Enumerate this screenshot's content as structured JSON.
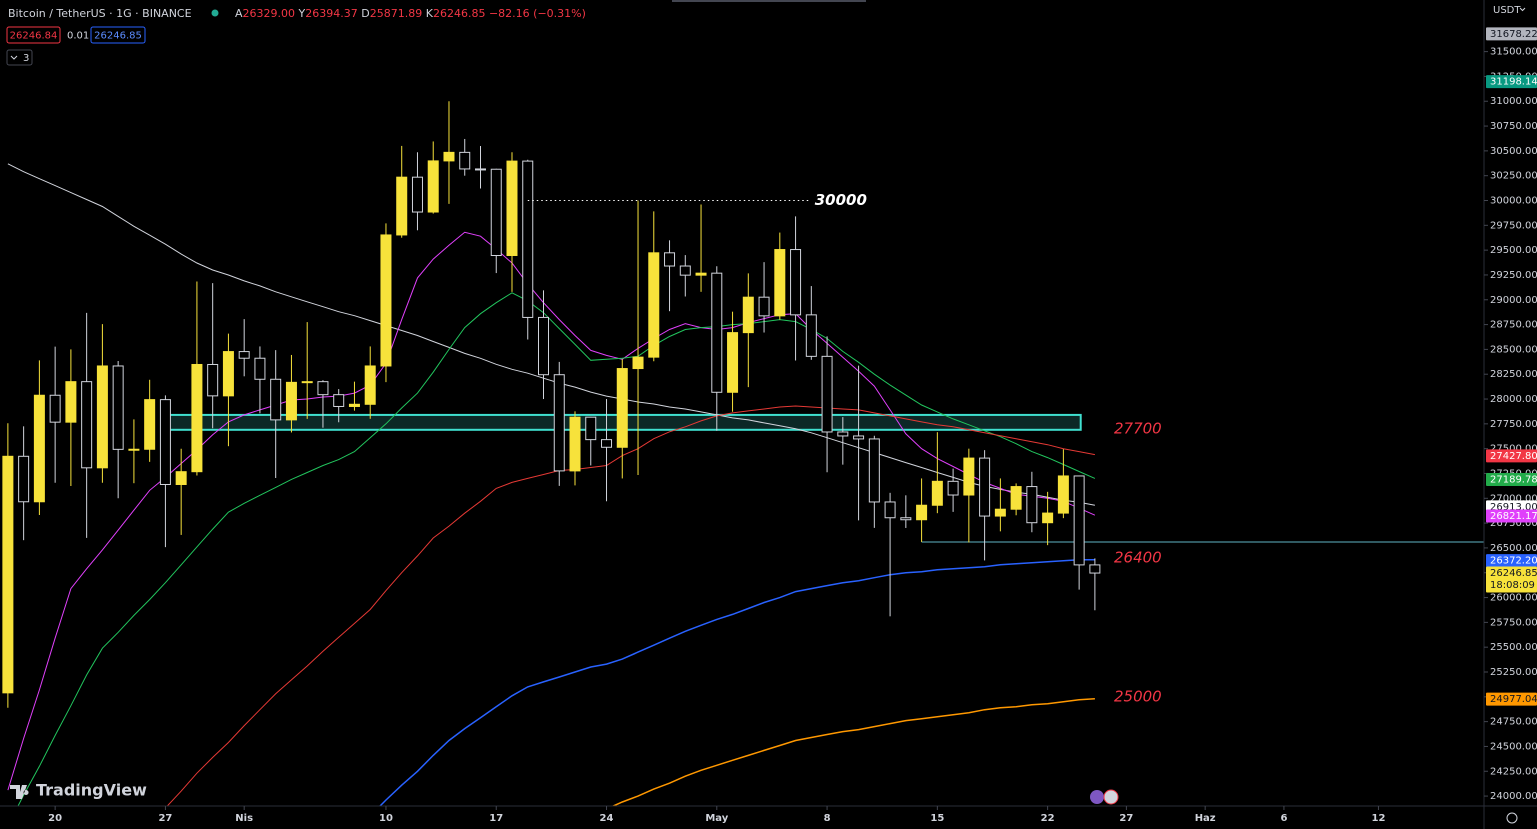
{
  "header": {
    "symbol": "Bitcoin / TetherUS · 1G · BINANCE",
    "ohlc": [
      {
        "key": "A",
        "value": "26329.00"
      },
      {
        "key": "Y",
        "value": "26394.37"
      },
      {
        "key": "D",
        "value": "25871.89"
      },
      {
        "key": "K",
        "value": "26246.85"
      }
    ],
    "change": "−82.16 (−0.31%)",
    "sell": "26246.84",
    "spread": "0.01",
    "buy": "26246.85",
    "indicators": "3",
    "currency": "USDT",
    "brand": "TradingView"
  },
  "chart_data": {
    "type": "candlestick",
    "up_color": "#f7e23b",
    "down_color": "#d1d4dc",
    "open": [
      25040,
      27423,
      26965,
      28038,
      27767,
      28175,
      27307,
      28333,
      27493,
      27494,
      27994,
      27139,
      27268,
      28348,
      28032,
      28478,
      28411,
      28199,
      27790,
      28168,
      28175,
      28044,
      27925,
      27947,
      28333,
      29653,
      30235,
      29884,
      30399,
      30485,
      30318,
      30315,
      29446,
      30397,
      28822,
      28245,
      27276,
      27817,
      27591,
      27514,
      28307,
      28422,
      29473,
      29340,
      29248,
      29268,
      28068,
      28669,
      29026,
      28838,
      29506,
      28848,
      28430,
      27668,
      27628,
      27598,
      26963,
      26804,
      26784,
      26930,
      27171,
      27033,
      27405,
      26821,
      26890,
      27118,
      26754,
      26851,
      27225,
      26329
    ],
    "high": [
      27756,
      27725,
      28390,
      28528,
      28500,
      28868,
      28754,
      28383,
      27795,
      28194,
      28037,
      27499,
      29184,
      29168,
      28659,
      28805,
      28530,
      28493,
      28444,
      28775,
      28190,
      28100,
      28175,
      28530,
      29770,
      30550,
      30486,
      30595,
      31000,
      30620,
      30549,
      30320,
      30486,
      30411,
      29095,
      28374,
      27876,
      27820,
      28000,
      28400,
      30000,
      29890,
      29599,
      29450,
      29960,
      29338,
      28880,
      29266,
      29379,
      29677,
      29840,
      29138,
      28631,
      27818,
      28336,
      27630,
      27055,
      27030,
      27200,
      27666,
      27299,
      27500,
      27485,
      27200,
      27150,
      27267,
      27065,
      27495,
      27225,
      26394.37
    ],
    "low": [
      24890,
      26578,
      26832,
      27156,
      27124,
      26601,
      27156,
      27000,
      27152,
      27367,
      26508,
      26631,
      27230,
      27705,
      27525,
      28229,
      27856,
      27204,
      27663,
      27800,
      27711,
      27766,
      27883,
      27801,
      28170,
      29625,
      29700,
      29868,
      29966,
      30250,
      30121,
      29269,
      29080,
      28600,
      28000,
      27125,
      27130,
      27331,
      26970,
      27200,
      27235,
      28380,
      28885,
      29033,
      29080,
      27680,
      27872,
      28120,
      28670,
      28800,
      28388,
      28395,
      27262,
      27339,
      26777,
      26702,
      25811,
      26701,
      26560,
      26850,
      26863,
      26555,
      26374,
      26667,
      26829,
      26658,
      26528,
      26800,
      26080,
      25871.89
    ],
    "close": [
      27423,
      26965,
      28038,
      27767,
      28175,
      27307,
      28333,
      27493,
      27494,
      27994,
      27139,
      27268,
      28348,
      28032,
      28478,
      28411,
      28199,
      27790,
      28168,
      28175,
      28044,
      27925,
      27947,
      28333,
      29653,
      30235,
      29884,
      30399,
      30485,
      30318,
      30315,
      29446,
      30397,
      28822,
      28245,
      27276,
      27817,
      27591,
      27514,
      28307,
      28422,
      29473,
      29340,
      29248,
      29268,
      28068,
      28669,
      29026,
      28838,
      29506,
      28848,
      28430,
      27668,
      27628,
      27598,
      26963,
      26804,
      26784,
      26930,
      27171,
      27033,
      27405,
      26821,
      26890,
      27118,
      26754,
      26851,
      27225,
      26329,
      26246.85
    ],
    "series": [
      {
        "color": "#d1d4dc",
        "values": [
          30370,
          30290,
          30220,
          30150,
          30080,
          30010,
          29940,
          29840,
          29740,
          29650,
          29560,
          29460,
          29370,
          29300,
          29250,
          29190,
          29140,
          29080,
          29030,
          28980,
          28930,
          28880,
          28840,
          28790,
          28740,
          28690,
          28640,
          28580,
          28520,
          28460,
          28410,
          28350,
          28300,
          28260,
          28210,
          28160,
          28120,
          28070,
          28030,
          28000,
          27970,
          27950,
          27920,
          27900,
          27870,
          27840,
          27810,
          27790,
          27760,
          27730,
          27700,
          27660,
          27610,
          27560,
          27510,
          27460,
          27410,
          27360,
          27310,
          27260,
          27210,
          27160,
          27120,
          27090,
          27060,
          27040,
          27010,
          26980,
          26960,
          26930
        ]
      },
      {
        "color": "#e040fb",
        "values": [
          24060,
          24580,
          25070,
          25590,
          26090,
          26290,
          26480,
          26680,
          26880,
          27080,
          27210,
          27350,
          27490,
          27640,
          27770,
          27840,
          27890,
          27940,
          27990,
          28000,
          28020,
          28030,
          28060,
          28140,
          28360,
          28800,
          29220,
          29410,
          29550,
          29680,
          29640,
          29510,
          29370,
          29160,
          28970,
          28800,
          28640,
          28490,
          28440,
          28400,
          28510,
          28610,
          28700,
          28760,
          28720,
          28700,
          28720,
          28770,
          28810,
          28850,
          28860,
          28700,
          28560,
          28420,
          28280,
          28130,
          27890,
          27650,
          27500,
          27400,
          27320,
          27240,
          27160,
          27100,
          27040,
          27020,
          27000,
          26970,
          26900,
          26830
        ]
      },
      {
        "color": "#22c55e",
        "values": [
          23700,
          24010,
          24300,
          24610,
          24910,
          25220,
          25490,
          25650,
          25820,
          25980,
          26150,
          26330,
          26510,
          26690,
          26860,
          26950,
          27030,
          27110,
          27190,
          27260,
          27330,
          27390,
          27470,
          27610,
          27750,
          27910,
          28060,
          28270,
          28500,
          28720,
          28860,
          28970,
          29070,
          28990,
          28870,
          28710,
          28550,
          28390,
          28400,
          28410,
          28430,
          28540,
          28630,
          28700,
          28720,
          28730,
          28750,
          28760,
          28780,
          28800,
          28780,
          28700,
          28610,
          28480,
          28370,
          28250,
          28140,
          28040,
          27940,
          27870,
          27800,
          27740,
          27680,
          27620,
          27550,
          27470,
          27410,
          27340,
          27270,
          27200
        ]
      },
      {
        "color": "#e53935",
        "values": [
          null,
          null,
          null,
          null,
          null,
          null,
          null,
          null,
          23530,
          23710,
          23880,
          24050,
          24230,
          24390,
          24540,
          24710,
          24870,
          25030,
          25170,
          25310,
          25460,
          25600,
          25740,
          25880,
          26070,
          26250,
          26420,
          26600,
          26720,
          26850,
          26970,
          27100,
          27160,
          27200,
          27240,
          27280,
          27290,
          27310,
          27330,
          27430,
          27500,
          27600,
          27670,
          27720,
          27780,
          27830,
          27860,
          27880,
          27900,
          27920,
          27930,
          27920,
          27910,
          27900,
          27890,
          27860,
          27830,
          27800,
          27770,
          27740,
          27720,
          27690,
          27660,
          27630,
          27600,
          27570,
          27540,
          27500,
          27470,
          27440
        ]
      },
      {
        "color": "#2962ff",
        "values": [
          null,
          null,
          null,
          null,
          null,
          null,
          null,
          null,
          null,
          null,
          null,
          null,
          null,
          null,
          null,
          null,
          null,
          null,
          null,
          null,
          null,
          null,
          23650,
          23800,
          23960,
          24110,
          24250,
          24410,
          24560,
          24680,
          24790,
          24900,
          25010,
          25100,
          25150,
          25200,
          25250,
          25300,
          25330,
          25380,
          25450,
          25520,
          25590,
          25660,
          25720,
          25780,
          25830,
          25890,
          25950,
          26000,
          26060,
          26090,
          26120,
          26150,
          26170,
          26200,
          26230,
          26250,
          26260,
          26280,
          26290,
          26300,
          26310,
          26330,
          26340,
          26350,
          26360,
          26370,
          26380,
          26380
        ]
      },
      {
        "color": "#ff9800",
        "values": [
          null,
          null,
          null,
          null,
          null,
          null,
          null,
          null,
          null,
          null,
          null,
          null,
          null,
          null,
          null,
          null,
          null,
          null,
          null,
          null,
          null,
          null,
          null,
          null,
          null,
          null,
          null,
          null,
          null,
          null,
          null,
          null,
          null,
          null,
          null,
          null,
          23740,
          23810,
          23870,
          23940,
          24000,
          24070,
          24130,
          24200,
          24260,
          24310,
          24360,
          24410,
          24460,
          24510,
          24560,
          24590,
          24620,
          24650,
          24670,
          24700,
          24730,
          24760,
          24780,
          24800,
          24820,
          24840,
          24870,
          24890,
          24900,
          24920,
          24930,
          24950,
          24970,
          24980
        ]
      }
    ],
    "xlim": [
      -0.5,
      93.7
    ],
    "xticks": [
      {
        "value": 3,
        "label": "20"
      },
      {
        "value": 10,
        "label": "27"
      },
      {
        "value": 15,
        "label": "Nis"
      },
      {
        "value": 24,
        "label": "10"
      },
      {
        "value": 31,
        "label": "17"
      },
      {
        "value": 38,
        "label": "24"
      },
      {
        "value": 45,
        "label": "May"
      },
      {
        "value": 52,
        "label": "8"
      },
      {
        "value": 59,
        "label": "15"
      },
      {
        "value": 66,
        "label": "22"
      },
      {
        "value": 71,
        "label": "27"
      },
      {
        "value": 76,
        "label": "Haz"
      },
      {
        "value": 81,
        "label": "6"
      },
      {
        "value": 87,
        "label": "12"
      }
    ],
    "ylim": [
      23900,
      32020
    ],
    "yticks": [
      {
        "value": 24000,
        "label": "24000.00"
      },
      {
        "value": 24250,
        "label": "24250.00"
      },
      {
        "value": 24500,
        "label": "24500.00"
      },
      {
        "value": 24750,
        "label": "24750.00"
      },
      {
        "value": 25000,
        "label": "25000.00"
      },
      {
        "value": 25250,
        "label": "25250.00"
      },
      {
        "value": 25500,
        "label": "25500.00"
      },
      {
        "value": 25750,
        "label": "25750.00"
      },
      {
        "value": 26000,
        "label": "26000.00"
      },
      {
        "value": 26250,
        "label": "26250.00"
      },
      {
        "value": 26500,
        "label": "26500.00"
      },
      {
        "value": 26750,
        "label": "26750.00"
      },
      {
        "value": 27000,
        "label": "27000.00"
      },
      {
        "value": 27250,
        "label": "27250.00"
      },
      {
        "value": 27500,
        "label": "27500.00"
      },
      {
        "value": 27750,
        "label": "27750.00"
      },
      {
        "value": 28000,
        "label": "28000.00"
      },
      {
        "value": 28250,
        "label": "28250.00"
      },
      {
        "value": 28500,
        "label": "28500.00"
      },
      {
        "value": 28750,
        "label": "28750.00"
      },
      {
        "value": 29000,
        "label": "29000.00"
      },
      {
        "value": 29250,
        "label": "29250.00"
      },
      {
        "value": 29500,
        "label": "29500.00"
      },
      {
        "value": 29750,
        "label": "29750.00"
      },
      {
        "value": 30000,
        "label": "30000.00"
      },
      {
        "value": 30250,
        "label": "30250.00"
      },
      {
        "value": 30500,
        "label": "30500.00"
      },
      {
        "value": 30750,
        "label": "30750.00"
      },
      {
        "value": 31000,
        "label": "31000.00"
      },
      {
        "value": 31250,
        "label": "31250.00"
      },
      {
        "value": 31500,
        "label": "31500.00"
      }
    ],
    "price_labels": [
      {
        "value": 31678.22,
        "label": "31678.22",
        "color": "#b2b5be",
        "text_color": "#131722"
      },
      {
        "value": 31198.14,
        "label": "31198.14",
        "color": "#089981",
        "text_color": "#ffffff"
      },
      {
        "value": 27427.8,
        "label": "27427.80",
        "color": "#f23645",
        "text_color": "#ffffff"
      },
      {
        "value": 27189.78,
        "label": "27189.78",
        "color": "#22ab4a",
        "text_color": "#ffffff"
      },
      {
        "value": 26913,
        "label": "26913.00",
        "color": "#ffffff",
        "text_color": "#131722"
      },
      {
        "value": 26821.17,
        "label": "26821.17",
        "color": "#e040fb",
        "text_color": "#ffffff"
      },
      {
        "value": 26372.2,
        "label": "26372.20",
        "color": "#2962ff",
        "text_color": "#ffffff"
      },
      {
        "value": 26246.85,
        "label": "26246.85",
        "color": "#f7e23b",
        "text_color": "#131722",
        "sub": "18:08:09"
      },
      {
        "value": 24977.04,
        "label": "24977.04",
        "color": "#ff9800",
        "text_color": "#131722"
      }
    ],
    "zone": {
      "top": 27840,
      "bottom": 27690,
      "from": 10,
      "to": 68.1,
      "color": "#40e0d0"
    },
    "ray": {
      "value": 26560,
      "from": 58,
      "color": "#5fb3c4"
    },
    "target": {
      "value": 30000,
      "from": 33,
      "to": 50.9
    },
    "levels": [
      27700,
      26400,
      25000
    ],
    "level_color": "#f23645"
  }
}
